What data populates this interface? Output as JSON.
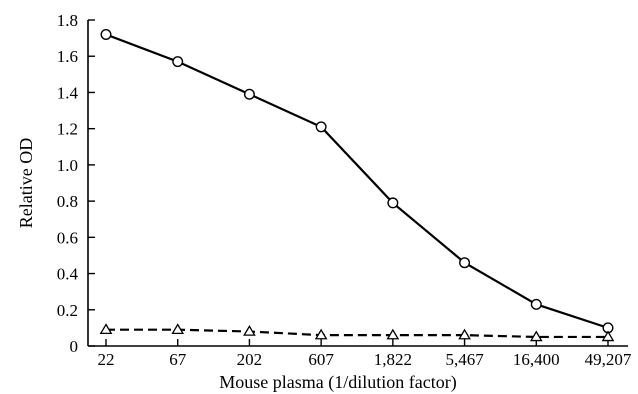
{
  "chart_data": {
    "type": "line",
    "title": "",
    "xlabel": "Mouse plasma (1/dilution factor)",
    "ylabel": "Relative OD",
    "categories": [
      "22",
      "67",
      "202",
      "607",
      "1,822",
      "5,467",
      "16,400",
      "49,207"
    ],
    "ylim": [
      0,
      1.8
    ],
    "yticks": [
      "0",
      "0.2",
      "0.4",
      "0.6",
      "0.8",
      "1.0",
      "1.2",
      "1.4",
      "1.6",
      "1.8"
    ],
    "grid": false,
    "legend": "none",
    "series": [
      {
        "marker": "circle",
        "line_style": "solid",
        "color": "#000000",
        "values": [
          1.72,
          1.57,
          1.39,
          1.21,
          0.79,
          0.46,
          0.23,
          0.1
        ]
      },
      {
        "marker": "triangle",
        "line_style": "dashed",
        "color": "#000000",
        "values": [
          0.09,
          0.09,
          0.08,
          0.06,
          0.06,
          0.06,
          0.05,
          0.05
        ]
      }
    ]
  }
}
